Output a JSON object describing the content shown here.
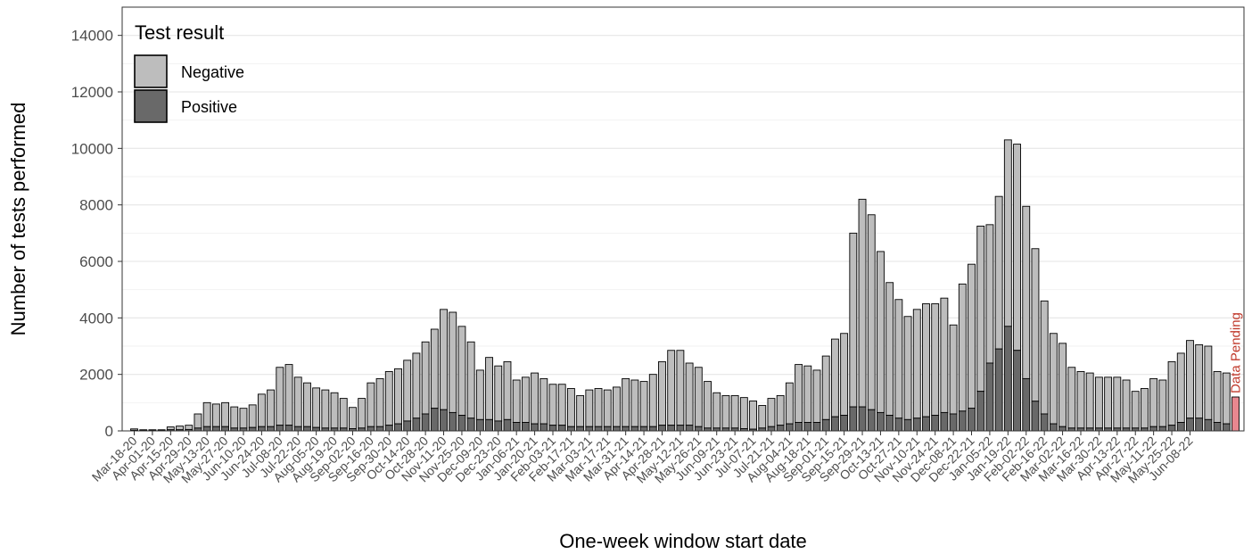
{
  "chart_data": {
    "type": "bar",
    "stacked": true,
    "title": "",
    "xlabel": "One-week window start date",
    "ylabel": "Number of tests performed",
    "ylim": [
      0,
      15000
    ],
    "yticks": [
      0,
      2000,
      4000,
      6000,
      8000,
      10000,
      12000,
      14000
    ],
    "grid": true,
    "legend": {
      "title": "Test result",
      "placement": "top-left",
      "entries": [
        {
          "label": "Negative",
          "color": "#bdbdbd"
        },
        {
          "label": "Positive",
          "color": "#696969"
        }
      ]
    },
    "colors": {
      "negative": "#bdbdbd",
      "positive": "#696969",
      "pending": "#e8878f",
      "annotation": "#c0392b"
    },
    "x_tick_labels": [
      "Mar-18-20",
      "Apr-01-20",
      "Apr-15-20",
      "Apr-29-20",
      "May-13-20",
      "May-27-20",
      "Jun-10-20",
      "Jun-24-20",
      "Jul-08-20",
      "Jul-22-20",
      "Aug-05-20",
      "Aug-19-20",
      "Sep-02-20",
      "Sep-16-20",
      "Sep-30-20",
      "Oct-14-20",
      "Oct-28-20",
      "Nov-11-20",
      "Nov-25-20",
      "Dec-09-20",
      "Dec-23-20",
      "Jan-06-21",
      "Jan-20-21",
      "Feb-03-21",
      "Feb-17-21",
      "Mar-03-21",
      "Mar-17-21",
      "Mar-31-21",
      "Apr-14-21",
      "Apr-28-21",
      "May-12-21",
      "May-26-21",
      "Jun-09-21",
      "Jun-23-21",
      "Jul-07-21",
      "Jul-21-21",
      "Aug-04-21",
      "Aug-18-21",
      "Sep-01-21",
      "Sep-15-21",
      "Sep-29-21",
      "Oct-13-21",
      "Oct-27-21",
      "Nov-10-21",
      "Nov-24-21",
      "Dec-08-21",
      "Dec-22-21",
      "Jan-05-22",
      "Jan-19-22",
      "Feb-02-22",
      "Feb-16-22",
      "Mar-02-22",
      "Mar-16-22",
      "Mar-30-22",
      "Apr-13-22",
      "Apr-27-22",
      "May-11-22",
      "May-25-22",
      "Jun-08-22"
    ],
    "series": [
      {
        "name": "Negative",
        "values": [
          50,
          30,
          30,
          30,
          100,
          130,
          150,
          500,
          850,
          800,
          850,
          750,
          700,
          800,
          1150,
          1300,
          2050,
          2150,
          1750,
          1550,
          1400,
          1350,
          1250,
          1050,
          750,
          1050,
          1550,
          1700,
          1900,
          1950,
          2150,
          2300,
          2550,
          2800,
          3550,
          3550,
          3150,
          2700,
          1750,
          2200,
          1950,
          2050,
          1500,
          1600,
          1800,
          1600,
          1450,
          1450,
          1350,
          1100,
          1300,
          1350,
          1300,
          1400,
          1700,
          1650,
          1600,
          1850,
          2250,
          2650,
          2650,
          2200,
          2100,
          1650,
          1250,
          1150,
          1150,
          1100,
          1000,
          800,
          1000,
          1050,
          1450,
          2050,
          2000,
          1850,
          2250,
          2750,
          2900,
          6150,
          7350,
          6900,
          5700,
          4700,
          4200,
          3650,
          3850,
          4000,
          3950,
          4050,
          3150,
          4500,
          5100,
          5850,
          4900,
          5400,
          6600,
          7300,
          6100,
          5400,
          4000,
          3200,
          2950,
          2150,
          2000,
          1950,
          1800,
          1800,
          1800,
          1700,
          1300,
          1400,
          1700,
          1650,
          2250,
          2450,
          2750,
          2600,
          2600,
          1800,
          1800,
          0
        ]
      },
      {
        "name": "Positive",
        "values": [
          20,
          10,
          10,
          10,
          40,
          40,
          50,
          100,
          150,
          150,
          150,
          100,
          100,
          120,
          150,
          150,
          200,
          200,
          150,
          150,
          120,
          100,
          100,
          100,
          80,
          100,
          150,
          150,
          200,
          250,
          350,
          450,
          600,
          800,
          750,
          650,
          550,
          450,
          400,
          400,
          350,
          400,
          300,
          300,
          250,
          250,
          200,
          200,
          150,
          150,
          150,
          150,
          150,
          150,
          150,
          150,
          150,
          150,
          200,
          200,
          200,
          200,
          150,
          100,
          100,
          100,
          100,
          80,
          60,
          100,
          150,
          200,
          250,
          300,
          300,
          300,
          400,
          500,
          550,
          850,
          850,
          750,
          650,
          550,
          450,
          400,
          450,
          500,
          550,
          650,
          600,
          700,
          800,
          1400,
          2400,
          2900,
          3700,
          2850,
          1850,
          1050,
          600,
          250,
          150,
          100,
          100,
          100,
          100,
          100,
          100,
          100,
          100,
          100,
          150,
          150,
          200,
          300,
          450,
          450,
          400,
          300,
          250,
          0
        ]
      },
      {
        "name": "Pending",
        "values": [
          0,
          0,
          0,
          0,
          0,
          0,
          0,
          0,
          0,
          0,
          0,
          0,
          0,
          0,
          0,
          0,
          0,
          0,
          0,
          0,
          0,
          0,
          0,
          0,
          0,
          0,
          0,
          0,
          0,
          0,
          0,
          0,
          0,
          0,
          0,
          0,
          0,
          0,
          0,
          0,
          0,
          0,
          0,
          0,
          0,
          0,
          0,
          0,
          0,
          0,
          0,
          0,
          0,
          0,
          0,
          0,
          0,
          0,
          0,
          0,
          0,
          0,
          0,
          0,
          0,
          0,
          0,
          0,
          0,
          0,
          0,
          0,
          0,
          0,
          0,
          0,
          0,
          0,
          0,
          0,
          0,
          0,
          0,
          0,
          0,
          0,
          0,
          0,
          0,
          0,
          0,
          0,
          0,
          0,
          0,
          0,
          0,
          0,
          0,
          0,
          0,
          0,
          0,
          0,
          0,
          0,
          0,
          0,
          0,
          0,
          0,
          0,
          0,
          0,
          0,
          0,
          0,
          0,
          0,
          0,
          0,
          1200
        ]
      }
    ],
    "annotation": "Data Pending"
  }
}
